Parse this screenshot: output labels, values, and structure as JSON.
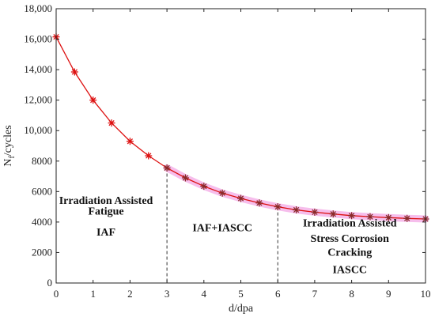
{
  "chart_data": {
    "type": "line",
    "xlabel": "d/dpa",
    "ylabel": {
      "main": "N",
      "sub": "f",
      "rest": "/cycles"
    },
    "xlim": [
      0,
      10
    ],
    "ylim": [
      0,
      18000
    ],
    "xticks": [
      0,
      1,
      2,
      3,
      4,
      5,
      6,
      7,
      8,
      9,
      10
    ],
    "yticks": [
      0,
      2000,
      4000,
      6000,
      8000,
      10000,
      12000,
      14000,
      16000,
      18000
    ],
    "ytick_labels": [
      "0",
      "2000",
      "4000",
      "6000",
      "8000",
      "10,000",
      "12,000",
      "14,000",
      "16,000",
      "18,000"
    ],
    "grid": false,
    "series": [
      {
        "color": "#dd1111",
        "marker": "asterisk",
        "x": [
          0,
          0.5,
          1,
          1.5,
          2,
          2.5,
          3,
          3.5,
          4,
          4.5,
          5,
          5.5,
          6,
          6.5,
          7,
          7.5,
          8,
          8.5,
          9,
          9.5,
          10
        ],
        "y": [
          16150,
          13850,
          12000,
          10500,
          9300,
          8350,
          7550,
          6900,
          6350,
          5900,
          5550,
          5250,
          5000,
          4800,
          4650,
          4530,
          4420,
          4350,
          4290,
          4240,
          4200
        ]
      }
    ],
    "highlight_color": "#ee88dd",
    "highlight_from_x": 3,
    "dividers": [
      {
        "x": 3,
        "y": 7550
      },
      {
        "x": 6,
        "y": 5000
      }
    ],
    "annotations": [
      {
        "lines": [
          "Irradiation Assisted",
          "Fatigue",
          "IAF"
        ],
        "x": 1.35,
        "y": [
          5200,
          4500,
          3100
        ]
      },
      {
        "lines": [
          "IAF+IASCC"
        ],
        "x": 4.5,
        "y": [
          3400
        ]
      },
      {
        "lines": [
          "Irradiation Assisted",
          "Stress Corrosion",
          "Cracking",
          "IASCC"
        ],
        "x": 7.95,
        "y": [
          3700,
          2700,
          1800,
          650
        ]
      }
    ]
  }
}
